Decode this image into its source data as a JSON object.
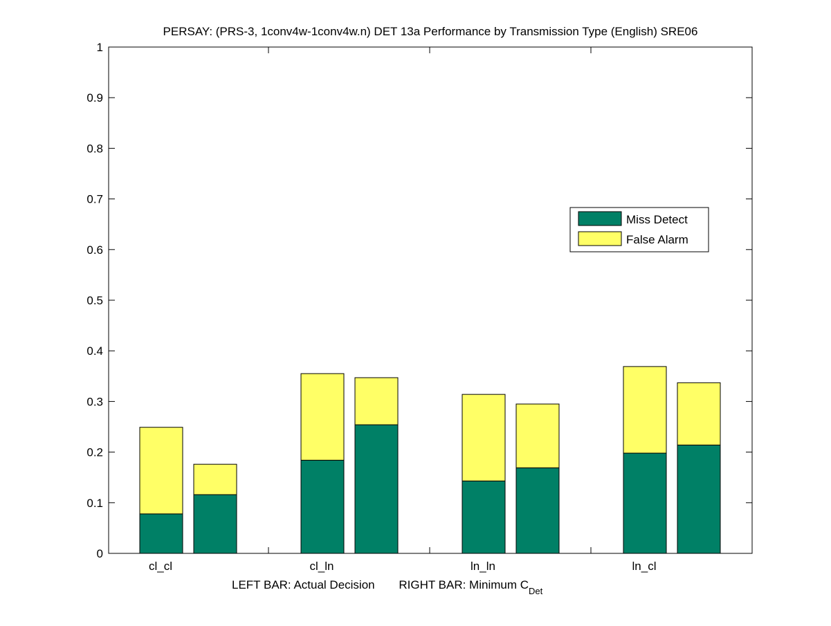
{
  "chart_data": {
    "type": "bar",
    "stacked": true,
    "title": "PERSAY: (PRS-3, 1conv4w-1conv4w.n) DET 13a Performance by Transmission Type (English) SRE06",
    "xlabel_left": "LEFT BAR: Actual Decision",
    "xlabel_right": "RIGHT BAR: Minimum C",
    "xlabel_right_sub": "Det",
    "categories": [
      "cl_cl",
      "cl_ln",
      "ln_ln",
      "ln_cl"
    ],
    "bar_roles": [
      "Actual Decision",
      "Minimum CDet"
    ],
    "ylim": [
      0,
      1
    ],
    "yticks": [
      "0",
      "0.1",
      "0.2",
      "0.3",
      "0.4",
      "0.5",
      "0.6",
      "0.7",
      "0.8",
      "0.9",
      "1"
    ],
    "legend_position": "right-middle",
    "series": [
      {
        "name": "Miss Detect",
        "color": "#008066",
        "values": [
          [
            0.078,
            0.116
          ],
          [
            0.184,
            0.254
          ],
          [
            0.143,
            0.169
          ],
          [
            0.198,
            0.214
          ]
        ]
      },
      {
        "name": "False Alarm",
        "color": "#FFFF66",
        "values": [
          [
            0.171,
            0.06
          ],
          [
            0.171,
            0.093
          ],
          [
            0.171,
            0.126
          ],
          [
            0.171,
            0.123
          ]
        ]
      }
    ]
  }
}
